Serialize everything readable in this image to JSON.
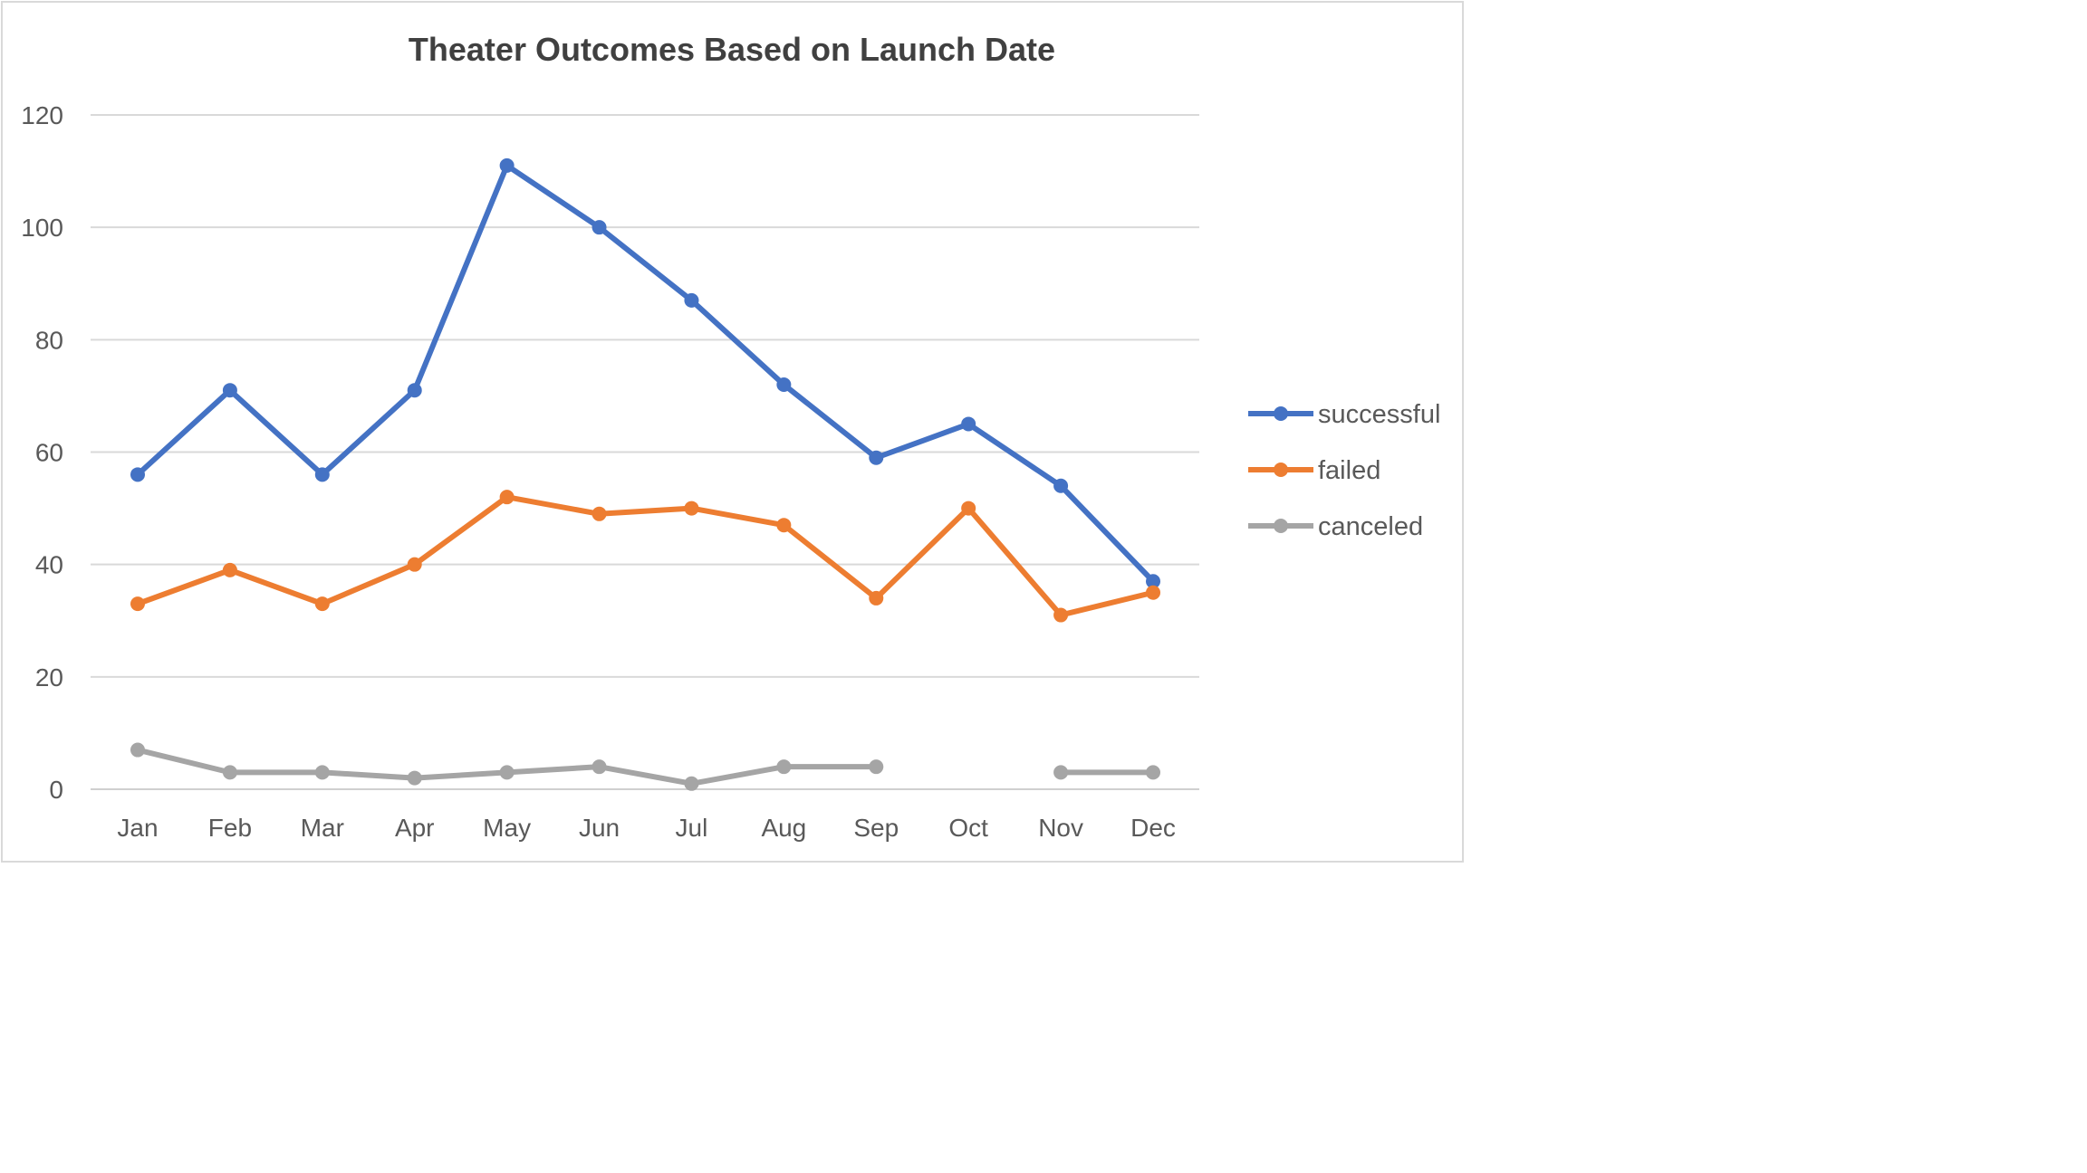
{
  "chart_data": {
    "type": "line",
    "title": "Theater Outcomes Based on Launch Date",
    "xlabel": "",
    "ylabel": "",
    "categories": [
      "Jan",
      "Feb",
      "Mar",
      "Apr",
      "May",
      "Jun",
      "Jul",
      "Aug",
      "Sep",
      "Oct",
      "Nov",
      "Dec"
    ],
    "ylim": [
      0,
      120
    ],
    "yticks": [
      "0",
      "20",
      "40",
      "60",
      "80",
      "100",
      "120"
    ],
    "grid": "horizontal",
    "legend_position": "right",
    "series": [
      {
        "name": "successful",
        "color": "#4472c4",
        "values": [
          56,
          71,
          56,
          71,
          111,
          100,
          87,
          72,
          59,
          65,
          54,
          37
        ]
      },
      {
        "name": "failed",
        "color": "#ed7d31",
        "values": [
          33,
          39,
          33,
          40,
          52,
          49,
          50,
          47,
          34,
          50,
          31,
          35
        ]
      },
      {
        "name": "canceled",
        "color": "#a5a5a5",
        "values": [
          7,
          3,
          3,
          2,
          3,
          4,
          1,
          4,
          4,
          null,
          3,
          3
        ]
      }
    ]
  }
}
